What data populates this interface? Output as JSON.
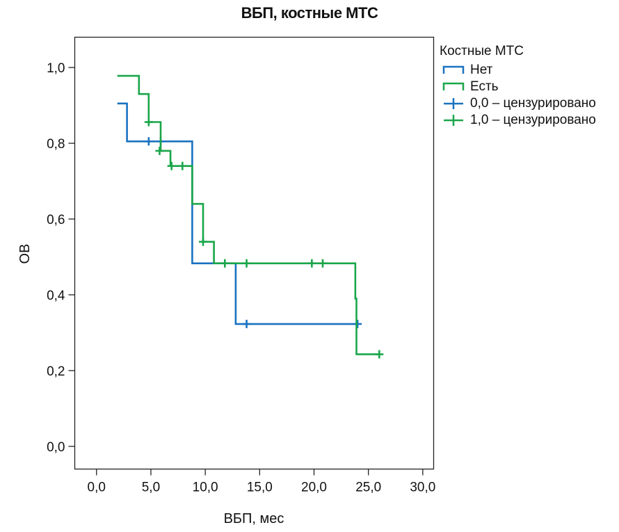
{
  "chart_data": {
    "type": "line",
    "subtype": "kaplan-meier step",
    "title": "ВБП, костные МТС",
    "xlabel": "ВБП, мес",
    "ylabel": "ОВ",
    "xlim": [
      -2,
      31
    ],
    "ylim": [
      -0.06,
      1.08
    ],
    "x_ticks": [
      "0,0",
      "5,0",
      "10,0",
      "15,0",
      "20,0",
      "25,0",
      "30,0"
    ],
    "y_ticks": [
      "0,0",
      "0,2",
      "0,4",
      "0,6",
      "0,8",
      "1,0"
    ],
    "grid": false,
    "legend": {
      "title": "Костные МТС",
      "placement": "right",
      "entries": [
        "Нет",
        "Есть",
        "0,0 – цензурировано",
        "1,0 – цензурировано"
      ]
    },
    "series": [
      {
        "name": "Нет",
        "color": "#1a72c0",
        "steps": [
          [
            2.0,
            0.905
          ],
          [
            2.8,
            0.805
          ],
          [
            8.8,
            0.483
          ],
          [
            12.8,
            0.323
          ],
          [
            24.0,
            0.323
          ]
        ],
        "censored": [
          [
            4.8,
            0.805
          ],
          [
            5.9,
            0.805
          ],
          [
            13.8,
            0.323
          ],
          [
            24.0,
            0.323
          ]
        ]
      },
      {
        "name": "Есть",
        "color": "#1aa64a",
        "steps": [
          [
            2.0,
            0.978
          ],
          [
            3.9,
            0.93
          ],
          [
            4.8,
            0.856
          ],
          [
            5.9,
            0.78
          ],
          [
            6.8,
            0.74
          ],
          [
            8.8,
            0.64
          ],
          [
            9.8,
            0.54
          ],
          [
            10.8,
            0.483
          ],
          [
            23.8,
            0.39
          ],
          [
            23.9,
            0.243
          ],
          [
            26.0,
            0.243
          ]
        ],
        "censored": [
          [
            4.8,
            0.856
          ],
          [
            5.8,
            0.78
          ],
          [
            6.9,
            0.74
          ],
          [
            7.9,
            0.74
          ],
          [
            9.8,
            0.54
          ],
          [
            11.8,
            0.483
          ],
          [
            13.8,
            0.483
          ],
          [
            19.8,
            0.483
          ],
          [
            20.8,
            0.483
          ],
          [
            26.0,
            0.243
          ]
        ]
      }
    ]
  }
}
